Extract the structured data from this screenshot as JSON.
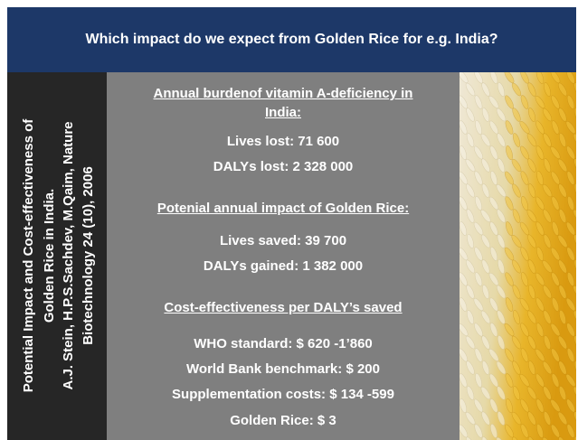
{
  "header": {
    "title": "Which impact do we expect from Golden Rice for e.g. India?"
  },
  "sidebar": {
    "lines": [
      "Potential Impact and Cost-effectiveness of",
      "Golden Rice in India.",
      "A.J. Stein, H.P.S.Sachdev, M.Qaim, Nature",
      "Biotechnology 24 (10), 2006"
    ]
  },
  "sections": [
    {
      "heading": [
        "Annual burdenof vitamin A-deficiency in",
        "India:"
      ],
      "items": [
        "Lives lost: 71 600",
        "DALYs lost: 2 328 000"
      ]
    },
    {
      "heading": [
        "Potenial annual impact of Golden Rice:"
      ],
      "items": [
        "Lives saved: 39 700",
        "DALYs gained: 1 382 000"
      ]
    },
    {
      "heading": [
        "Cost-effectiveness per DALY’s saved"
      ],
      "items": [
        "WHO standard: $ 620 -1’860",
        "World Bank benchmark: $ 200",
        "Supplementation costs: $ 134 -599",
        "Golden Rice: $ 3"
      ]
    }
  ]
}
